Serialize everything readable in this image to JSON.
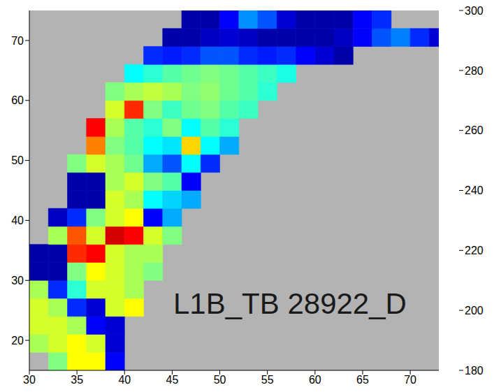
{
  "chart_data": {
    "type": "heatmap",
    "xlim": [
      30,
      73
    ],
    "ylim": [
      15,
      75
    ],
    "xticks": [
      30,
      35,
      40,
      45,
      50,
      55,
      60,
      65,
      70
    ],
    "yticks": [
      20,
      30,
      40,
      50,
      60,
      70
    ],
    "annotations": [
      "L1B_TB 28922_D"
    ],
    "colorbar": {
      "range": [
        180,
        300
      ],
      "ticks": [
        180,
        200,
        220,
        240,
        260,
        280,
        300
      ]
    },
    "cells": {
      "lon_edges": [
        30,
        32,
        34,
        36,
        38,
        40,
        42,
        44,
        46,
        48,
        50,
        52,
        54,
        56,
        58,
        60,
        62,
        64,
        66,
        68,
        70,
        72,
        73
      ],
      "lat_edges": [
        15,
        18,
        21,
        24,
        27,
        30,
        33,
        36,
        39,
        42,
        45,
        48,
        51,
        54,
        57,
        60,
        63,
        66,
        69,
        72,
        75
      ],
      "values": [
        [
          null,
          240,
          255,
          255,
          195,
          null,
          null,
          null,
          null,
          null,
          null,
          null,
          null,
          null,
          null,
          null,
          null,
          null,
          null,
          null,
          null,
          null
        ],
        [
          245,
          250,
          255,
          250,
          190,
          null,
          null,
          null,
          null,
          null,
          null,
          null,
          null,
          null,
          null,
          null,
          null,
          null,
          null,
          null,
          null,
          null
        ],
        [
          250,
          250,
          245,
          195,
          190,
          null,
          null,
          null,
          null,
          null,
          null,
          null,
          null,
          null,
          null,
          null,
          null,
          null,
          null,
          null,
          null,
          null
        ],
        [
          250,
          245,
          200,
          190,
          250,
          255,
          null,
          null,
          null,
          null,
          null,
          null,
          null,
          null,
          null,
          null,
          null,
          null,
          null,
          null,
          null,
          null
        ],
        [
          245,
          200,
          230,
          250,
          250,
          245,
          null,
          null,
          null,
          null,
          null,
          null,
          null,
          null,
          null,
          null,
          null,
          null,
          null,
          null,
          null,
          null
        ],
        [
          185,
          185,
          240,
          255,
          250,
          245,
          240,
          null,
          null,
          null,
          null,
          null,
          null,
          null,
          null,
          null,
          null,
          null,
          null,
          null,
          null,
          null
        ],
        [
          185,
          185,
          280,
          285,
          250,
          245,
          245,
          null,
          null,
          null,
          null,
          null,
          null,
          null,
          null,
          null,
          null,
          null,
          null,
          null,
          null,
          null
        ],
        [
          null,
          245,
          275,
          250,
          290,
          285,
          250,
          240,
          null,
          null,
          null,
          null,
          null,
          null,
          null,
          null,
          null,
          null,
          null,
          null,
          null,
          null
        ],
        [
          null,
          188,
          200,
          240,
          250,
          255,
          195,
          215,
          null,
          null,
          null,
          null,
          null,
          null,
          null,
          null,
          null,
          null,
          null,
          null,
          null,
          null
        ],
        [
          null,
          null,
          185,
          185,
          250,
          245,
          225,
          220,
          215,
          null,
          null,
          null,
          null,
          null,
          null,
          null,
          null,
          null,
          null,
          null,
          null,
          null
        ],
        [
          null,
          null,
          185,
          185,
          245,
          250,
          240,
          235,
          195,
          null,
          null,
          null,
          null,
          null,
          null,
          null,
          null,
          null,
          null,
          null,
          null,
          null
        ],
        [
          null,
          null,
          240,
          250,
          245,
          238,
          215,
          205,
          225,
          200,
          null,
          null,
          null,
          null,
          null,
          null,
          null,
          null,
          null,
          null,
          null,
          null
        ],
        [
          null,
          null,
          null,
          270,
          240,
          235,
          225,
          222,
          260,
          225,
          215,
          null,
          null,
          null,
          null,
          null,
          null,
          null,
          null,
          null,
          null,
          null
        ],
        [
          null,
          null,
          null,
          285,
          245,
          235,
          230,
          240,
          225,
          235,
          230,
          null,
          null,
          null,
          null,
          null,
          null,
          null,
          null,
          null,
          null,
          null
        ],
        [
          null,
          null,
          null,
          null,
          250,
          280,
          240,
          232,
          238,
          240,
          235,
          232,
          null,
          null,
          null,
          null,
          null,
          null,
          null,
          null,
          null,
          null
        ],
        [
          null,
          null,
          null,
          null,
          240,
          245,
          248,
          245,
          240,
          242,
          238,
          235,
          230,
          null,
          null,
          null,
          null,
          null,
          null,
          null,
          null,
          null
        ],
        [
          null,
          null,
          null,
          null,
          null,
          225,
          230,
          235,
          238,
          240,
          238,
          235,
          232,
          228,
          null,
          null,
          null,
          null,
          null,
          null,
          null,
          null
        ],
        [
          null,
          null,
          null,
          null,
          null,
          null,
          200,
          198,
          200,
          205,
          205,
          200,
          198,
          200,
          195,
          190,
          185,
          null,
          null,
          null,
          null,
          null
        ],
        [
          null,
          null,
          null,
          null,
          null,
          null,
          null,
          185,
          185,
          188,
          190,
          188,
          185,
          185,
          185,
          185,
          188,
          195,
          205,
          210,
          200,
          190
        ],
        [
          null,
          null,
          null,
          null,
          null,
          null,
          null,
          null,
          185,
          185,
          195,
          212,
          205,
          190,
          185,
          185,
          185,
          195,
          200,
          null,
          null,
          null
        ]
      ]
    }
  }
}
